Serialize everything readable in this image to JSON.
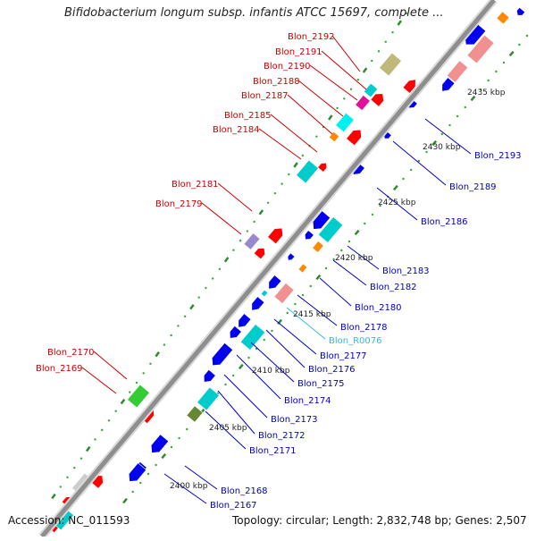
{
  "title": "Bifidobacterium longum subsp. infantis ATCC 15697, complete ...",
  "footer": {
    "accession": "Accession: NC_011593",
    "topology": "Topology: circular; Length: 2,832,748 bp; Genes: 2,507"
  },
  "colors": {
    "backbone": "#8e8e8e",
    "forward_labels": "#cc0000",
    "reverse_labels": "#0000cc",
    "rna_labels": "#33bbdd",
    "tick_marks": "#2e8b2e",
    "tick_dots": "#33aa33"
  },
  "scale_labels": [
    "2435 kbp",
    "2430 kbp",
    "2425 kbp",
    "2420 kbp",
    "2415 kbp",
    "2410 kbp",
    "2405 kbp",
    "2400 kbp"
  ],
  "forward_labels": [
    "Blon_2192",
    "Blon_2191",
    "Blon_2190",
    "Blon_2188",
    "Blon_2187",
    "Blon_2185",
    "Blon_2184",
    "Blon_2181",
    "Blon_2179",
    "Blon_2170",
    "Blon_2169"
  ],
  "reverse_labels": [
    "Blon_2193",
    "Blon_2189",
    "Blon_2186",
    "Blon_2183",
    "Blon_2182",
    "Blon_2180",
    "Blon_2178",
    "Blon_R0076",
    "Blon_2177",
    "Blon_2176",
    "Blon_2175",
    "Blon_2174",
    "Blon_2173",
    "Blon_2172",
    "Blon_2171",
    "Blon_2168",
    "Blon_2167"
  ]
}
